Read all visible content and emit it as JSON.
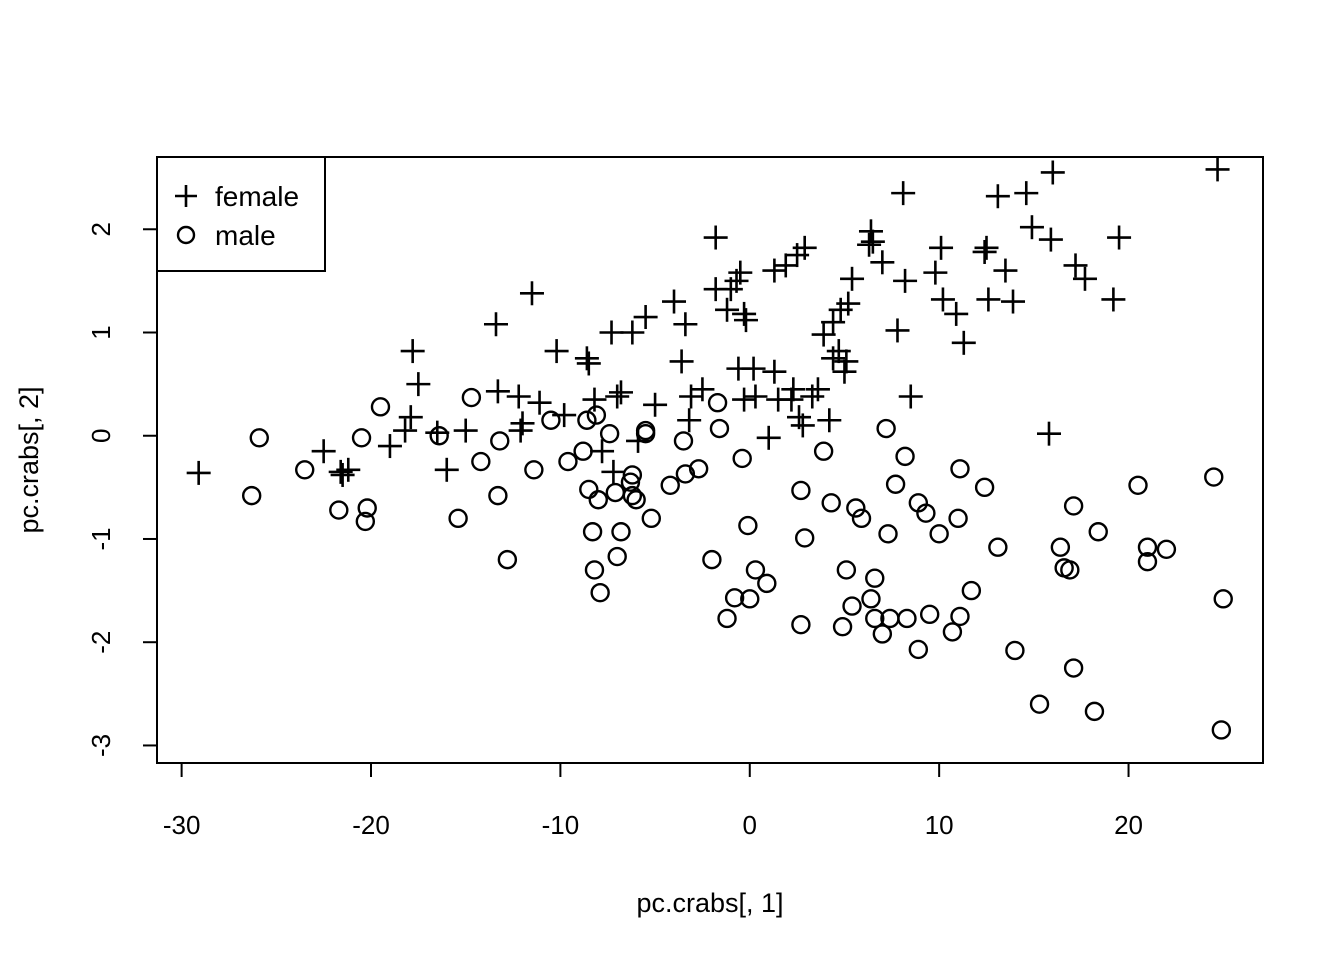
{
  "chart_data": {
    "type": "scatter",
    "title": "",
    "xlabel": "pc.crabs[, 1]",
    "ylabel": "pc.crabs[, 2]",
    "xlim": [
      -31.3,
      27.1
    ],
    "ylim": [
      -3.17,
      2.7
    ],
    "xticks": [
      -30,
      -20,
      -10,
      0,
      10,
      20
    ],
    "yticks": [
      -3,
      -2,
      -1,
      0,
      1,
      2
    ],
    "grid": false,
    "legend_position": "top-left",
    "series": [
      {
        "name": "female",
        "marker": "plus",
        "points": [
          [
            -29.1,
            -0.36
          ],
          [
            -22.5,
            -0.15
          ],
          [
            -21.6,
            -0.35
          ],
          [
            -21.2,
            -0.33
          ],
          [
            -21.5,
            -0.38
          ],
          [
            -19,
            -0.1
          ],
          [
            -18.2,
            0.05
          ],
          [
            -17.9,
            0.18
          ],
          [
            -17.8,
            0.82
          ],
          [
            -17.5,
            0.5
          ],
          [
            -16.5,
            0.03
          ],
          [
            -16,
            -0.33
          ],
          [
            -15,
            0.05
          ],
          [
            -13.4,
            1.08
          ],
          [
            -13.3,
            0.43
          ],
          [
            -12.2,
            0.38
          ],
          [
            -12,
            0.12
          ],
          [
            -12.1,
            0.05
          ],
          [
            -11.5,
            1.38
          ],
          [
            -11.1,
            0.32
          ],
          [
            -10.2,
            0.82
          ],
          [
            -9.8,
            0.2
          ],
          [
            -8.6,
            0.75
          ],
          [
            -8.5,
            0.7
          ],
          [
            -8.2,
            0.35
          ],
          [
            -7.8,
            -0.15
          ],
          [
            -7.3,
            1.0
          ],
          [
            -7.2,
            -0.35
          ],
          [
            -7,
            0.38
          ],
          [
            -6.8,
            0.42
          ],
          [
            -6.2,
            1.0
          ],
          [
            -5.9,
            -0.05
          ],
          [
            -5.5,
            1.15
          ],
          [
            -5,
            0.3
          ],
          [
            -4,
            1.3
          ],
          [
            -3.6,
            0.72
          ],
          [
            -3.4,
            1.08
          ],
          [
            -3.2,
            0.15
          ],
          [
            -3.1,
            0.38
          ],
          [
            -2.5,
            0.45
          ],
          [
            -1.8,
            1.92
          ],
          [
            -1.8,
            1.42
          ],
          [
            -1.2,
            1.22
          ],
          [
            -1,
            1.42
          ],
          [
            -0.7,
            1.5
          ],
          [
            -0.5,
            1.58
          ],
          [
            -0.6,
            0.65
          ],
          [
            -0.3,
            1.18
          ],
          [
            -0.2,
            1.12
          ],
          [
            -0.3,
            0.35
          ],
          [
            0.2,
            0.65
          ],
          [
            0.3,
            0.38
          ],
          [
            1,
            -0.02
          ],
          [
            1.3,
            1.6
          ],
          [
            1.3,
            0.62
          ],
          [
            1.5,
            0.35
          ],
          [
            1.9,
            1.65
          ],
          [
            2.2,
            0.35
          ],
          [
            2.3,
            0.45
          ],
          [
            2.5,
            1.75
          ],
          [
            2.6,
            0.18
          ],
          [
            2.8,
            0.1
          ],
          [
            2.9,
            1.82
          ],
          [
            3.3,
            0.38
          ],
          [
            3.6,
            0.45
          ],
          [
            3.9,
            0.98
          ],
          [
            4.2,
            0.15
          ],
          [
            4.4,
            1.1
          ],
          [
            4.4,
            0.75
          ],
          [
            4.7,
            0.82
          ],
          [
            4.8,
            1.22
          ],
          [
            5,
            0.62
          ],
          [
            5.1,
            0.72
          ],
          [
            5.2,
            1.28
          ],
          [
            5.4,
            1.52
          ],
          [
            6.3,
            1.85
          ],
          [
            6.4,
            1.98
          ],
          [
            6.5,
            1.88
          ],
          [
            7,
            1.68
          ],
          [
            7.8,
            1.02
          ],
          [
            8.1,
            2.35
          ],
          [
            8.2,
            1.5
          ],
          [
            8.5,
            0.38
          ],
          [
            9.8,
            1.58
          ],
          [
            10.1,
            1.82
          ],
          [
            10.2,
            1.32
          ],
          [
            10.9,
            1.18
          ],
          [
            11.3,
            0.9
          ],
          [
            12.4,
            1.78
          ],
          [
            12.5,
            1.82
          ],
          [
            12.6,
            1.32
          ],
          [
            13.1,
            2.32
          ],
          [
            13.5,
            1.6
          ],
          [
            13.9,
            1.3
          ],
          [
            14.6,
            2.35
          ],
          [
            14.9,
            2.02
          ],
          [
            15.8,
            0.02
          ],
          [
            15.9,
            1.9
          ],
          [
            16,
            2.55
          ],
          [
            17.2,
            1.65
          ],
          [
            17.7,
            1.52
          ],
          [
            19.2,
            1.32
          ],
          [
            19.5,
            1.92
          ],
          [
            24.7,
            2.58
          ]
        ]
      },
      {
        "name": "male",
        "marker": "circle",
        "points": [
          [
            -26.3,
            -0.58
          ],
          [
            -25.9,
            -0.02
          ],
          [
            -23.5,
            -0.33
          ],
          [
            -21.7,
            -0.72
          ],
          [
            -20.5,
            -0.02
          ],
          [
            -20.3,
            -0.83
          ],
          [
            -20.2,
            -0.7
          ],
          [
            -19.5,
            0.28
          ],
          [
            -16.4,
            0.0
          ],
          [
            -15.4,
            -0.8
          ],
          [
            -14.7,
            0.37
          ],
          [
            -14.2,
            -0.25
          ],
          [
            -13.3,
            -0.58
          ],
          [
            -13.2,
            -0.05
          ],
          [
            -12.8,
            -1.2
          ],
          [
            -11.4,
            -0.33
          ],
          [
            -10.5,
            0.15
          ],
          [
            -9.6,
            -0.25
          ],
          [
            -8.8,
            -0.15
          ],
          [
            -8.6,
            0.15
          ],
          [
            -8.5,
            -0.52
          ],
          [
            -8.3,
            -0.93
          ],
          [
            -8.2,
            -1.3
          ],
          [
            -8.1,
            0.2
          ],
          [
            -8,
            -0.62
          ],
          [
            -7.9,
            -1.52
          ],
          [
            -7.4,
            0.02
          ],
          [
            -7.1,
            -0.55
          ],
          [
            -7,
            -1.17
          ],
          [
            -6.8,
            -0.93
          ],
          [
            -6.3,
            -0.45
          ],
          [
            -6.2,
            -0.38
          ],
          [
            -6.2,
            -0.58
          ],
          [
            -6,
            -0.62
          ],
          [
            -5.5,
            0.02
          ],
          [
            -5.5,
            0.05
          ],
          [
            -5.2,
            -0.8
          ],
          [
            -4.2,
            -0.48
          ],
          [
            -3.5,
            -0.05
          ],
          [
            -3.4,
            -0.37
          ],
          [
            -2.7,
            -0.32
          ],
          [
            -2,
            -1.2
          ],
          [
            -1.7,
            0.32
          ],
          [
            -1.6,
            0.07
          ],
          [
            -1.2,
            -1.77
          ],
          [
            -0.8,
            -1.57
          ],
          [
            -0.4,
            -0.22
          ],
          [
            -0.1,
            -0.87
          ],
          [
            0,
            -1.58
          ],
          [
            0.3,
            -1.3
          ],
          [
            0.9,
            -1.43
          ],
          [
            2.7,
            -0.53
          ],
          [
            2.7,
            -1.83
          ],
          [
            2.9,
            -0.99
          ],
          [
            3.9,
            -0.15
          ],
          [
            4.3,
            -0.65
          ],
          [
            4.9,
            -1.85
          ],
          [
            5.1,
            -1.3
          ],
          [
            5.4,
            -1.65
          ],
          [
            5.6,
            -0.7
          ],
          [
            5.9,
            -0.8
          ],
          [
            6.4,
            -1.58
          ],
          [
            6.6,
            -1.38
          ],
          [
            6.6,
            -1.77
          ],
          [
            7,
            -1.92
          ],
          [
            7.2,
            0.07
          ],
          [
            7.3,
            -0.95
          ],
          [
            7.4,
            -1.77
          ],
          [
            7.7,
            -0.47
          ],
          [
            8.2,
            -0.2
          ],
          [
            8.3,
            -1.77
          ],
          [
            8.9,
            -0.65
          ],
          [
            8.9,
            -2.07
          ],
          [
            9.3,
            -0.75
          ],
          [
            9.5,
            -1.73
          ],
          [
            10,
            -0.95
          ],
          [
            10.7,
            -1.9
          ],
          [
            11,
            -0.8
          ],
          [
            11.1,
            -0.32
          ],
          [
            11.1,
            -1.75
          ],
          [
            11.7,
            -1.5
          ],
          [
            12.4,
            -0.5
          ],
          [
            13.1,
            -1.08
          ],
          [
            14,
            -2.08
          ],
          [
            15.3,
            -2.6
          ],
          [
            16.4,
            -1.08
          ],
          [
            16.6,
            -1.28
          ],
          [
            16.9,
            -1.3
          ],
          [
            17.1,
            -2.25
          ],
          [
            17.1,
            -0.68
          ],
          [
            18.2,
            -2.67
          ],
          [
            18.4,
            -0.93
          ],
          [
            20.5,
            -0.48
          ],
          [
            21,
            -1.08
          ],
          [
            21,
            -1.22
          ],
          [
            22,
            -1.1
          ],
          [
            24.5,
            -0.4
          ],
          [
            24.9,
            -2.85
          ],
          [
            25,
            -1.58
          ]
        ]
      }
    ]
  }
}
